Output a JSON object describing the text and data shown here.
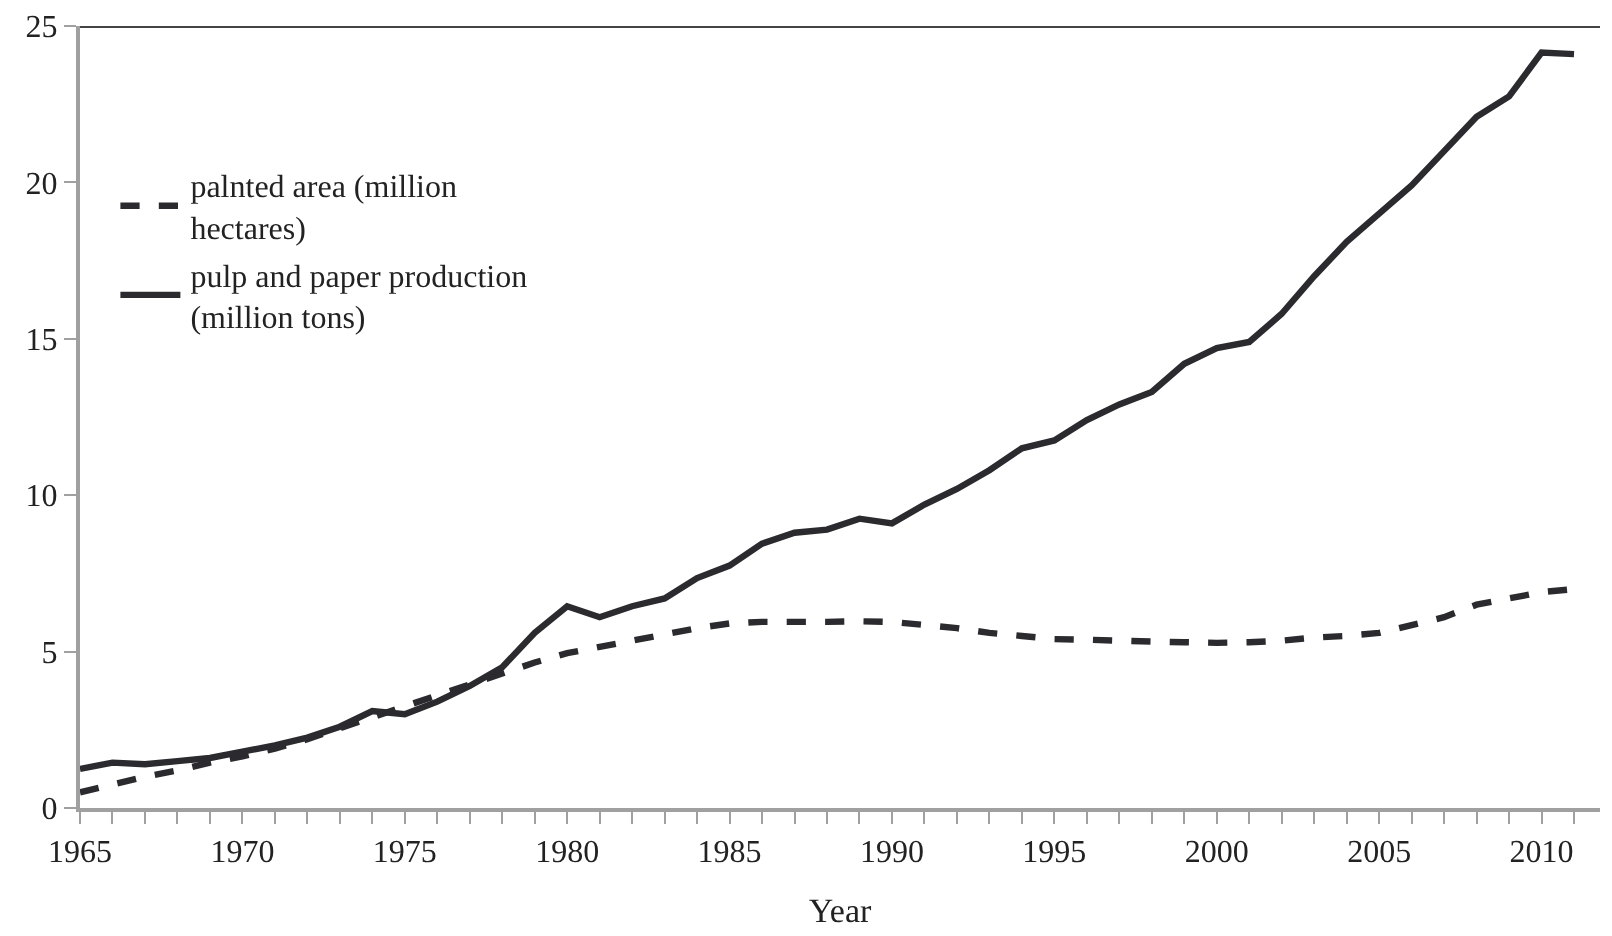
{
  "chart_data": {
    "type": "line",
    "xlabel": "Year",
    "x": [
      1965,
      1966,
      1967,
      1968,
      1969,
      1970,
      1971,
      1972,
      1973,
      1974,
      1975,
      1976,
      1977,
      1978,
      1979,
      1980,
      1981,
      1982,
      1983,
      1984,
      1985,
      1986,
      1987,
      1988,
      1989,
      1990,
      1991,
      1992,
      1993,
      1994,
      1995,
      1996,
      1997,
      1998,
      1999,
      2000,
      2001,
      2002,
      2003,
      2004,
      2005,
      2006,
      2007,
      2008,
      2009,
      2010,
      2011
    ],
    "series": [
      {
        "name": "palnted area (million hectares)",
        "color": "#2b2b2f",
        "line_style": "dashed",
        "values": [
          0.5,
          0.75,
          1.0,
          1.2,
          1.45,
          1.65,
          1.9,
          2.2,
          2.55,
          2.9,
          3.25,
          3.6,
          3.95,
          4.3,
          4.65,
          4.95,
          5.15,
          5.35,
          5.55,
          5.75,
          5.9,
          5.95,
          5.95,
          5.95,
          5.97,
          5.95,
          5.85,
          5.75,
          5.6,
          5.5,
          5.4,
          5.38,
          5.35,
          5.32,
          5.3,
          5.28,
          5.3,
          5.35,
          5.45,
          5.5,
          5.6,
          5.85,
          6.1,
          6.5,
          6.7,
          6.9,
          7.0
        ]
      },
      {
        "name": "pulp and paper production (million tons)",
        "color": "#2b2b2f",
        "line_style": "solid",
        "values": [
          1.25,
          1.45,
          1.4,
          1.5,
          1.6,
          1.8,
          2.0,
          2.25,
          2.6,
          3.1,
          3.0,
          3.4,
          3.9,
          4.5,
          5.6,
          6.45,
          6.1,
          6.45,
          6.7,
          7.35,
          7.75,
          8.45,
          8.8,
          8.9,
          9.25,
          9.1,
          9.7,
          10.2,
          10.8,
          11.5,
          11.75,
          12.4,
          12.9,
          13.3,
          14.2,
          14.7,
          14.9,
          15.8,
          17.0,
          18.1,
          19.0,
          19.9,
          21.0,
          22.1,
          22.75,
          24.15,
          24.1
        ]
      }
    ],
    "xlim": [
      1965,
      2011.8
    ],
    "xticks": [
      1965,
      {
        "value": 1966,
        "label": null
      },
      {
        "value": 1967,
        "label": null
      },
      {
        "value": 1968,
        "label": null
      },
      {
        "value": 1969,
        "label": null
      },
      1970,
      {
        "value": 1971,
        "label": null
      },
      {
        "value": 1972,
        "label": null
      },
      {
        "value": 1973,
        "label": null
      },
      {
        "value": 1974,
        "label": null
      },
      1975,
      {
        "value": 1976,
        "label": null
      },
      {
        "value": 1977,
        "label": null
      },
      {
        "value": 1978,
        "label": null
      },
      {
        "value": 1979,
        "label": null
      },
      1980,
      {
        "value": 1981,
        "label": null
      },
      {
        "value": 1982,
        "label": null
      },
      {
        "value": 1983,
        "label": null
      },
      {
        "value": 1984,
        "label": null
      },
      1985,
      {
        "value": 1986,
        "label": null
      },
      {
        "value": 1987,
        "label": null
      },
      {
        "value": 1988,
        "label": null
      },
      {
        "value": 1989,
        "label": null
      },
      1990,
      {
        "value": 1991,
        "label": null
      },
      {
        "value": 1992,
        "label": null
      },
      {
        "value": 1993,
        "label": null
      },
      {
        "value": 1994,
        "label": null
      },
      1995,
      {
        "value": 1996,
        "label": null
      },
      {
        "value": 1997,
        "label": null
      },
      {
        "value": 1998,
        "label": null
      },
      {
        "value": 1999,
        "label": null
      },
      2000,
      {
        "value": 2001,
        "label": null
      },
      {
        "value": 2002,
        "label": null
      },
      {
        "value": 2003,
        "label": null
      },
      {
        "value": 2004,
        "label": null
      },
      2005,
      {
        "value": 2006,
        "label": null
      },
      {
        "value": 2007,
        "label": null
      },
      {
        "value": 2008,
        "label": null
      },
      {
        "value": 2009,
        "label": null
      },
      2010,
      {
        "value": 2011,
        "label": null
      }
    ],
    "ylim": [
      0,
      25
    ],
    "yticks": [
      0,
      5,
      10,
      15,
      20,
      25
    ],
    "grid": false,
    "legend": "top left",
    "marker": "none"
  }
}
